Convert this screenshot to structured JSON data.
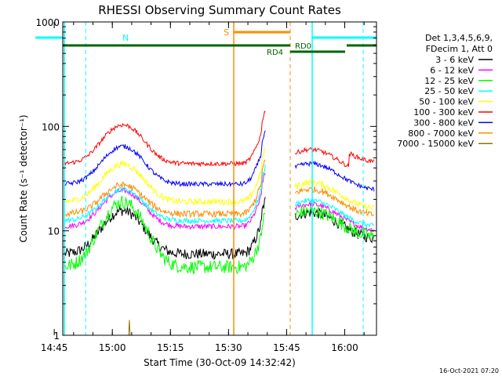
{
  "chart_data": {
    "type": "line",
    "title": "RHESSI Observing Summary Count Rates",
    "xlabel": "Start Time (30-Oct-09 14:32:42)",
    "ylabel": "Count Rate (s⁻¹ detector⁻¹)",
    "yscale": "log",
    "ylim": [
      1,
      1000
    ],
    "xlim_minutes": [
      14.5,
      95.5
    ],
    "x_ticks": [
      {
        "label": "14:45",
        "minutes": 12.3
      },
      {
        "label": "15:00",
        "minutes": 27.3
      },
      {
        "label": "15:15",
        "minutes": 42.3
      },
      {
        "label": "15:30",
        "minutes": 57.3
      },
      {
        "label": "15:45",
        "minutes": 72.3
      },
      {
        "label": "16:00",
        "minutes": 87.3
      }
    ],
    "y_ticks": [
      {
        "label": "1",
        "value": 1
      },
      {
        "label": "10",
        "value": 10
      },
      {
        "label": "100",
        "value": 100
      },
      {
        "label": "1000",
        "value": 1000
      }
    ],
    "legend_header": [
      "Det 1,3,4,5,6,9,",
      "FDecim 1, Att 0"
    ],
    "legend_position": "right",
    "series": [
      {
        "name": "3 - 6 keV",
        "color": "#000000",
        "pre": 6.0,
        "post": 15.0,
        "peak": 2.6,
        "noise": 0.12
      },
      {
        "name": "6 - 12 keV",
        "color": "#ff00ff",
        "pre": 11.0,
        "post": 18.0,
        "peak": 2.2,
        "noise": 0.06
      },
      {
        "name": "12 - 25 keV",
        "color": "#00ff00",
        "pre": 4.5,
        "post": 15.5,
        "peak": 4.2,
        "noise": 0.15
      },
      {
        "name": "25 - 50 keV",
        "color": "#00ffff",
        "pre": 12.5,
        "post": 19.5,
        "peak": 2.0,
        "noise": 0.06
      },
      {
        "name": "50 - 100 keV",
        "color": "#ffff00",
        "pre": 19.0,
        "post": 29.0,
        "peak": 2.3,
        "noise": 0.07
      },
      {
        "name": "100 - 300 keV",
        "color": "#ff0000",
        "pre": 44.0,
        "post": 60.0,
        "peak": 2.35,
        "noise": 0.05
      },
      {
        "name": "300 - 800 keV",
        "color": "#0000ff",
        "pre": 28.0,
        "post": 44.0,
        "peak": 2.3,
        "noise": 0.05
      },
      {
        "name": "800 - 7000 keV",
        "color": "#ff8c00",
        "pre": 14.5,
        "post": 25.0,
        "peak": 1.9,
        "noise": 0.07
      },
      {
        "name": "7000 - 15000 keV",
        "color": "#8b7500",
        "pre": 0.0,
        "post": 0.0,
        "peak": 0.0,
        "noise": 0.0
      }
    ],
    "annotations": [
      {
        "label": "N",
        "color": "#00ffff"
      },
      {
        "label": "S",
        "color": "#ff8c00"
      },
      {
        "label": "RD0",
        "color": "#006400"
      },
      {
        "label": "RD4",
        "color": "#006400"
      }
    ],
    "footer_date": "16-Oct-2021 07:20"
  }
}
